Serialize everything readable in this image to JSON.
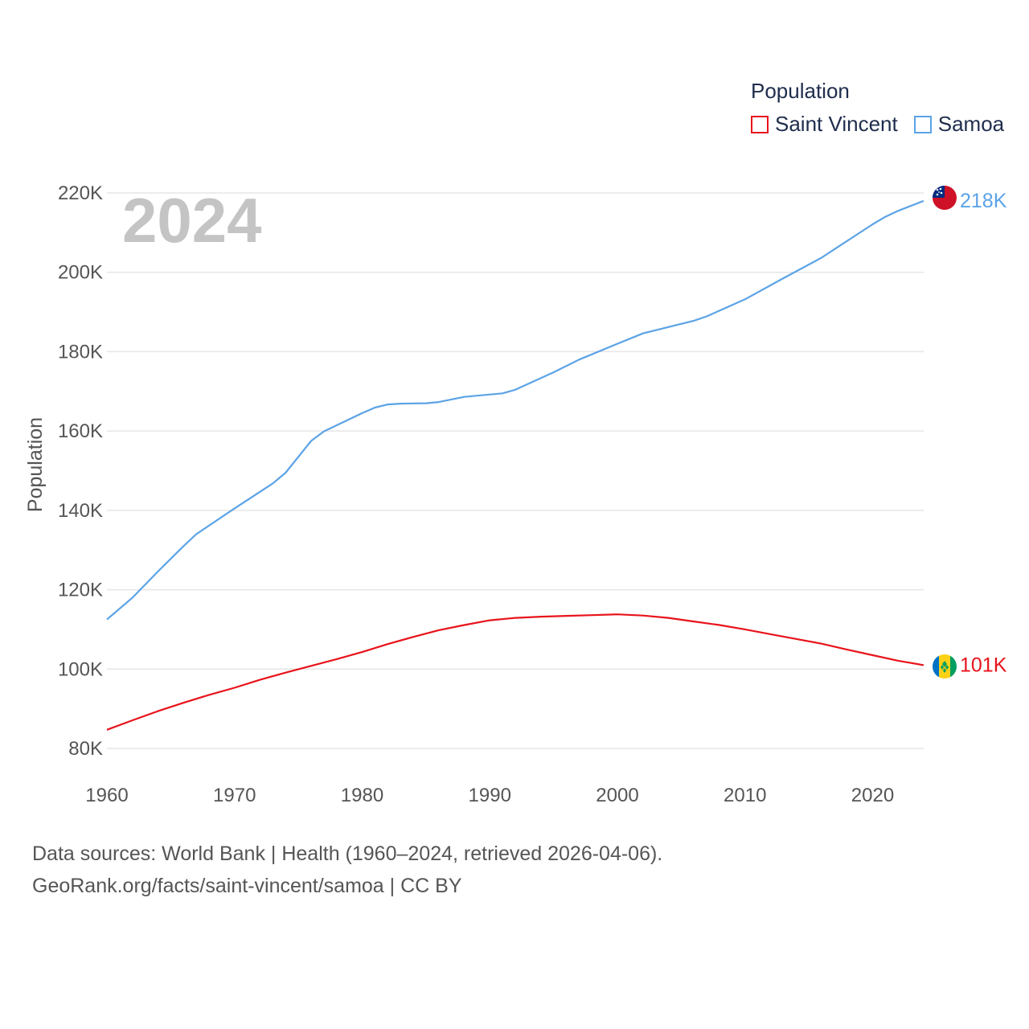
{
  "legend": {
    "title": "Population",
    "items": [
      {
        "label": "Saint Vincent",
        "color": "#e8131b"
      },
      {
        "label": "Samoa",
        "color": "#5ba3e6"
      }
    ]
  },
  "footer": {
    "line1": "Data sources: World Bank | Health (1960–2024, retrieved 2026-04-06).",
    "line2": "GeoRank.org/facts/saint-vincent/samoa | CC BY"
  },
  "chart_data": {
    "type": "line",
    "year_label": "2024",
    "ylabel": "Population",
    "xlim": [
      1960,
      2024
    ],
    "ylim": [
      80000,
      220000
    ],
    "x_ticks": [
      1960,
      1970,
      1980,
      1990,
      2000,
      2010,
      2020
    ],
    "y_ticks": [
      {
        "value": 80000,
        "label": "80K"
      },
      {
        "value": 100000,
        "label": "100K"
      },
      {
        "value": 120000,
        "label": "120K"
      },
      {
        "value": 140000,
        "label": "140K"
      },
      {
        "value": 160000,
        "label": "160K"
      },
      {
        "value": 180000,
        "label": "180K"
      },
      {
        "value": 200000,
        "label": "200K"
      },
      {
        "value": 220000,
        "label": "220K"
      }
    ],
    "series": [
      {
        "name": "Samoa",
        "color": "#5ba3e6",
        "end_label": "218K",
        "flag": "samoa-flag-icon",
        "x": [
          1960,
          1962,
          1964,
          1966,
          1967,
          1970,
          1973,
          1974,
          1976,
          1977,
          1980,
          1981,
          1982,
          1983,
          1985,
          1986,
          1988,
          1989,
          1991,
          1992,
          1995,
          1997,
          2000,
          2002,
          2004,
          2006,
          2007,
          2010,
          2013,
          2016,
          2017,
          2020,
          2021,
          2022,
          2024
        ],
        "values": [
          112500,
          118000,
          124600,
          131000,
          134000,
          140500,
          146800,
          149500,
          157500,
          159900,
          164500,
          165900,
          166700,
          166900,
          167000,
          167300,
          168600,
          168900,
          169500,
          170400,
          174800,
          178000,
          182000,
          184600,
          186200,
          187800,
          188900,
          193200,
          198500,
          203700,
          205800,
          212100,
          214000,
          215500,
          218000
        ]
      },
      {
        "name": "Saint Vincent",
        "color": "#e8131b",
        "end_label": "101K",
        "flag": "saint-vincent-flag-icon",
        "x": [
          1960,
          1962,
          1964,
          1966,
          1968,
          1970,
          1972,
          1974,
          1976,
          1978,
          1980,
          1982,
          1984,
          1986,
          1988,
          1990,
          1992,
          1994,
          1996,
          1998,
          2000,
          2002,
          2004,
          2006,
          2008,
          2010,
          2012,
          2014,
          2016,
          2018,
          2020,
          2022,
          2024
        ],
        "values": [
          84700,
          87100,
          89400,
          91500,
          93500,
          95300,
          97300,
          99100,
          100800,
          102500,
          104300,
          106300,
          108100,
          109800,
          111100,
          112300,
          112900,
          113200,
          113400,
          113600,
          113800,
          113500,
          112900,
          112000,
          111100,
          110000,
          108800,
          107600,
          106400,
          104900,
          103500,
          102100,
          101000
        ]
      }
    ]
  }
}
